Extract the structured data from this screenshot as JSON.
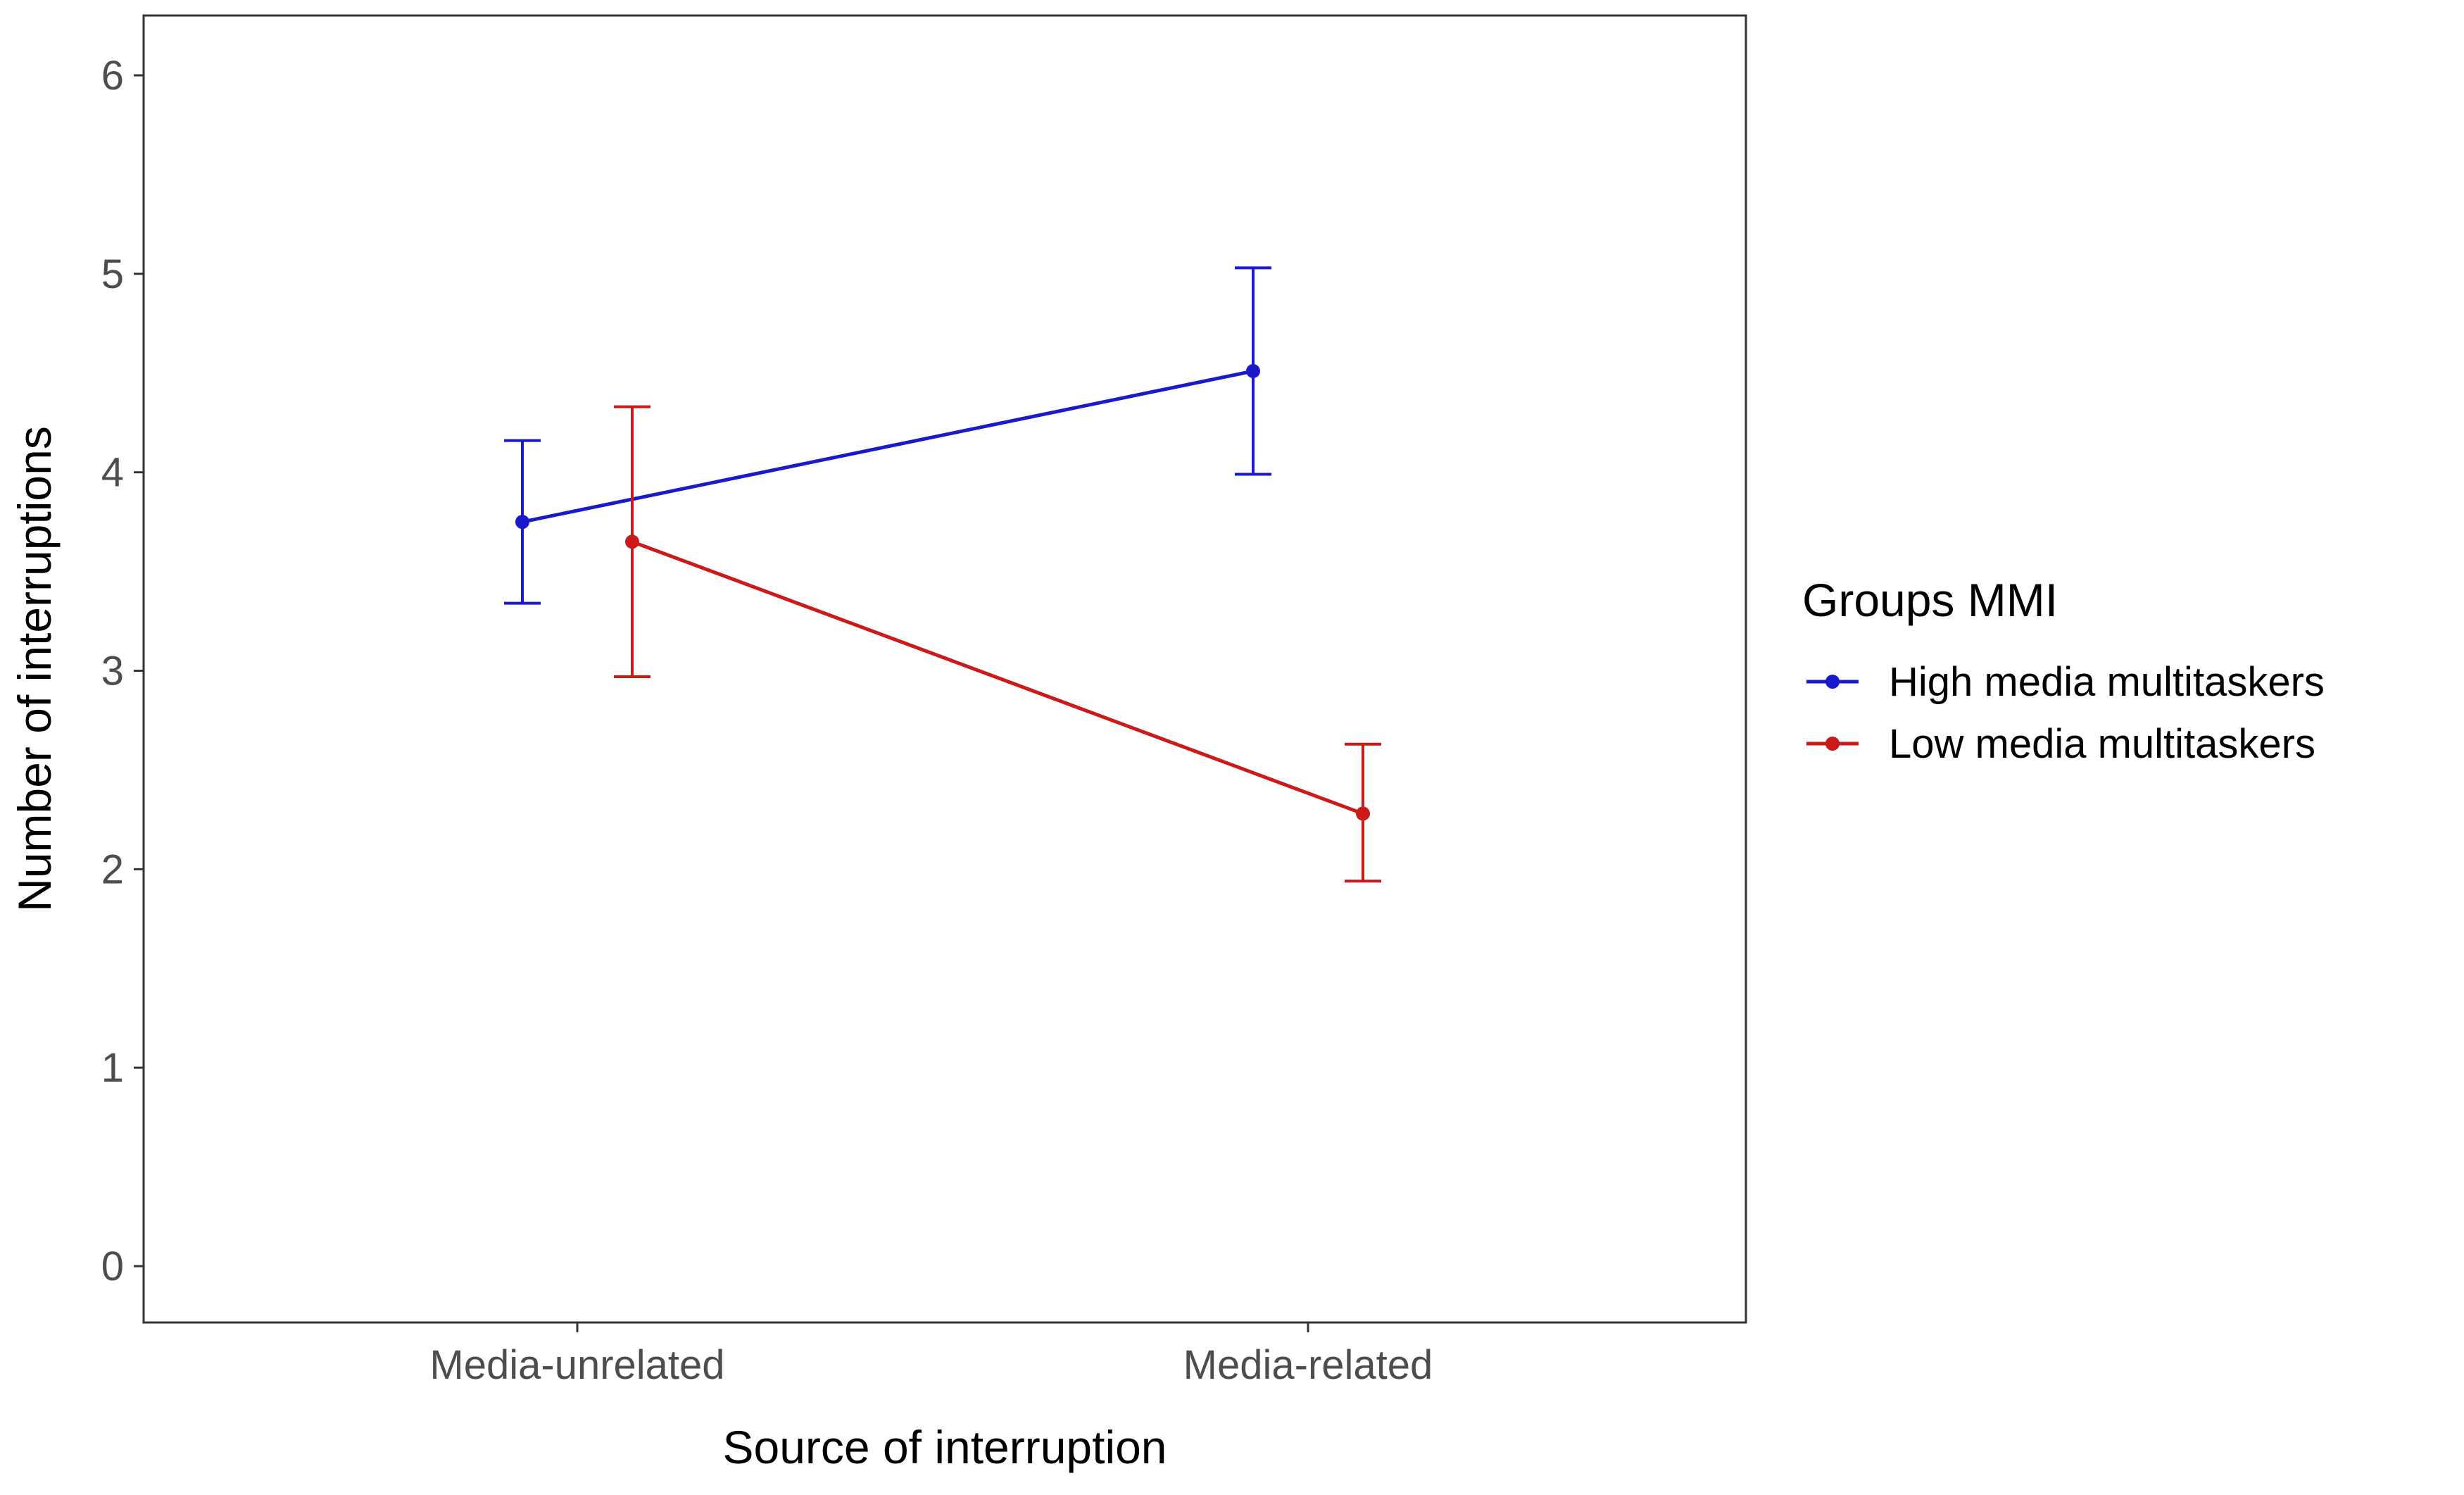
{
  "chart_data": {
    "type": "line",
    "title": "",
    "xlabel": "Source of interruption",
    "ylabel": "Number of interruptions",
    "categories": [
      "Media-unrelated",
      "Media-related"
    ],
    "ylim": [
      0,
      6.3
    ],
    "yticks": [
      0,
      1,
      2,
      3,
      4,
      5,
      6
    ],
    "grid": false,
    "legend": {
      "title": "Groups MMI",
      "position": "right"
    },
    "series": [
      {
        "name": "High media multitaskers",
        "color": "#1a1acc",
        "values": [
          3.75,
          4.51
        ],
        "error_low": [
          3.34,
          3.99
        ],
        "error_high": [
          4.16,
          5.03
        ]
      },
      {
        "name": "Low media multitaskers",
        "color": "#cc1a1a",
        "values": [
          3.65,
          2.28
        ],
        "error_low": [
          2.97,
          1.94
        ],
        "error_high": [
          4.33,
          2.63
        ]
      }
    ]
  }
}
